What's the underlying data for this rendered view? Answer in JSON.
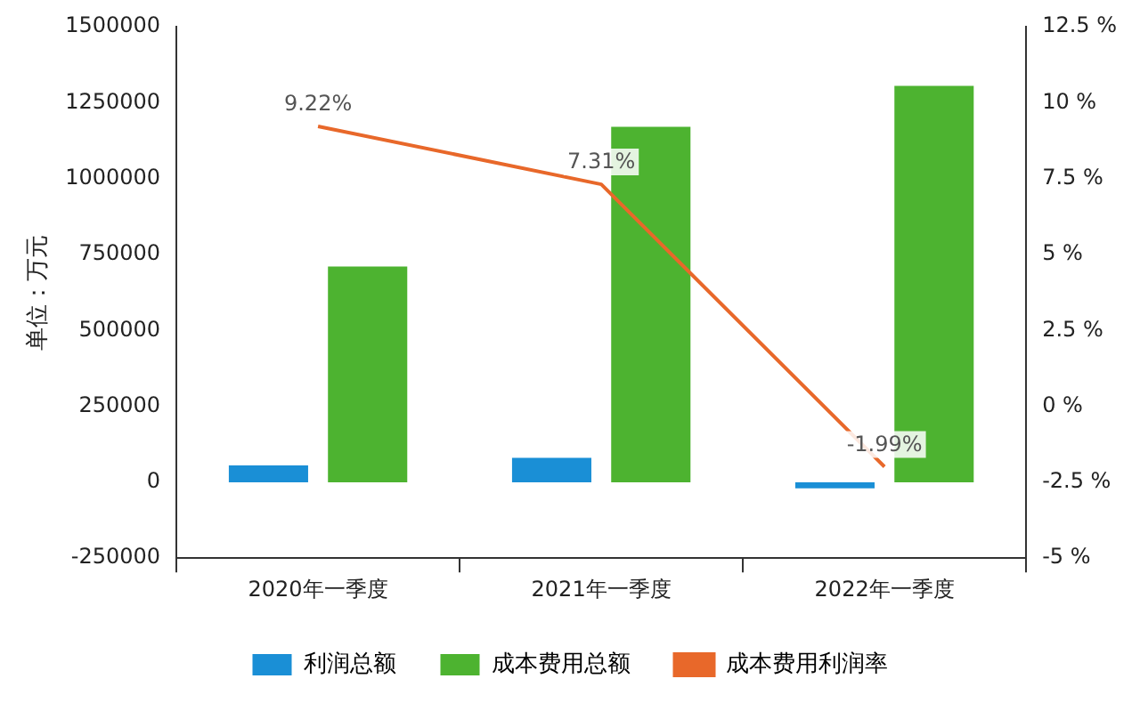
{
  "chart_data": {
    "type": "bar",
    "ylabel": "单位：万元",
    "categories": [
      "2020年一季度",
      "2021年一季度",
      "2022年一季度"
    ],
    "series": [
      {
        "name": "利润总额",
        "color": "#1a8fd6",
        "values": [
          55000,
          80000,
          -20000
        ]
      },
      {
        "name": "成本费用总额",
        "color": "#4db330",
        "values": [
          710000,
          1170000,
          1305000
        ]
      },
      {
        "name": "成本费用利润率",
        "type": "line",
        "axis": "y2",
        "color": "#e8682a",
        "values": [
          9.22,
          7.31,
          -1.99
        ],
        "value_labels": [
          "9.22%",
          "7.31%",
          "-1.99%"
        ]
      }
    ],
    "ylim": [
      -250000,
      1500000
    ],
    "yticks": [
      -250000,
      0,
      250000,
      500000,
      750000,
      1000000,
      1250000,
      1500000
    ],
    "y2lim": [
      -5,
      12.5
    ],
    "y2ticks": [
      {
        "value": -5,
        "label": "-5 %"
      },
      {
        "value": -2.5,
        "label": "-2.5 %"
      },
      {
        "value": 0,
        "label": "0 %"
      },
      {
        "value": 2.5,
        "label": "2.5 %"
      },
      {
        "value": 5,
        "label": "5 %"
      },
      {
        "value": 7.5,
        "label": "7.5 %"
      },
      {
        "value": 10,
        "label": "10 %"
      },
      {
        "value": 12.5,
        "label": "12.5 %"
      }
    ],
    "grid": false,
    "legend": "bottom",
    "marker": "none"
  }
}
